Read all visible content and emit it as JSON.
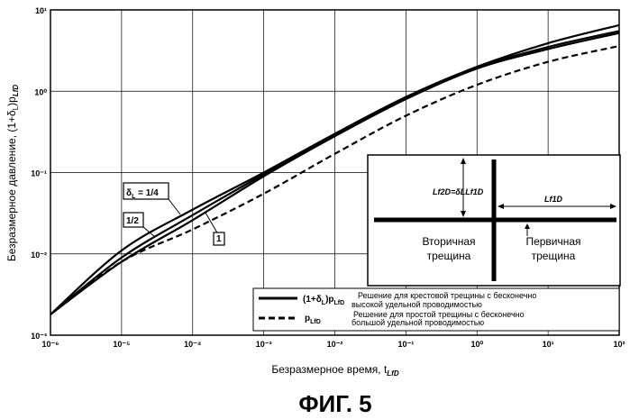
{
  "chart_data": {
    "type": "line",
    "xscale": "log",
    "yscale": "log",
    "xlim": [
      1e-06,
      100
    ],
    "ylim": [
      0.001,
      10
    ],
    "grid": true,
    "x_ticks": [
      {
        "label": "10⁻⁶"
      },
      {
        "label": "10⁻⁵"
      },
      {
        "label": "10⁻⁴"
      },
      {
        "label": "10⁻³"
      },
      {
        "label": "10⁻²"
      },
      {
        "label": "10⁻¹"
      },
      {
        "label": "10⁰"
      },
      {
        "label": "10¹"
      },
      {
        "label": "10²"
      }
    ],
    "y_ticks": [
      {
        "label": "10⁻³"
      },
      {
        "label": "10⁻²"
      },
      {
        "label": "10⁻¹"
      },
      {
        "label": "10⁰"
      },
      {
        "label": "10¹"
      }
    ],
    "xlabel": "Безразмерное время, t",
    "xlabel_sub": "LfD",
    "ylabel": "Безразмерное давление, (1+δ",
    "ylabel_rest": ")p",
    "ylabel_sub1": "L",
    "ylabel_sub2": "LfD",
    "series": [
      {
        "name": "δL = 1/4",
        "style": "solid",
        "x": [
          1e-06,
          1e-05,
          0.0001,
          0.001,
          0.01,
          0.1,
          1,
          10,
          100
        ],
        "y": [
          0.0018,
          0.011,
          0.035,
          0.1,
          0.3,
          0.85,
          2.0,
          3.9,
          6.5
        ]
      },
      {
        "name": "1/2",
        "style": "solid",
        "x": [
          1e-06,
          1e-05,
          0.0001,
          0.001,
          0.01,
          0.1,
          1,
          10,
          100
        ],
        "y": [
          0.0018,
          0.009,
          0.03,
          0.095,
          0.29,
          0.83,
          1.95,
          3.5,
          5.5
        ]
      },
      {
        "name": "1",
        "style": "solid",
        "x": [
          1e-06,
          1e-05,
          0.0001,
          0.001,
          0.01,
          0.1,
          1,
          10,
          100
        ],
        "y": [
          0.0018,
          0.008,
          0.026,
          0.09,
          0.28,
          0.8,
          1.9,
          3.3,
          5.2
        ]
      },
      {
        "name": "pLfD",
        "style": "dashed",
        "x": [
          1e-06,
          1e-05,
          0.0001,
          0.001,
          0.01,
          0.1,
          1,
          10,
          100
        ],
        "y": [
          0.0018,
          0.008,
          0.02,
          0.055,
          0.17,
          0.5,
          1.2,
          2.3,
          3.6
        ]
      }
    ],
    "annotations": [
      {
        "text": "δ",
        "sub": "L",
        "rest": " = 1/4",
        "series": 0
      },
      {
        "text": "1/2",
        "series": 1
      },
      {
        "text": "1",
        "series": 2
      }
    ],
    "legend": {
      "placement": "bottom-right",
      "entries": [
        {
          "symbol": "(1+δ",
          "symbol_sub": "L",
          "symbol_rest": ")p",
          "symbol_sub2": "LfD",
          "text1": "Решение для крестовой трещины с бесконечно",
          "text2": "высокой удельной проводимостью",
          "style": "solid"
        },
        {
          "symbol": "p",
          "symbol_sub2": "LfD",
          "text1": "Решение для простой трещины с бесконечно",
          "text2": "большой удельной проводимостью",
          "style": "dashed"
        }
      ]
    },
    "inset": {
      "secondary_label_1": "Вторичная",
      "secondary_label_2": "трещина",
      "primary_label_1": "Первичная",
      "primary_label_2": "трещина",
      "dim_left": "Lf2D=δLLf1D",
      "dim_right": "Lf1D"
    }
  },
  "figure_caption": "ФИГ. 5"
}
